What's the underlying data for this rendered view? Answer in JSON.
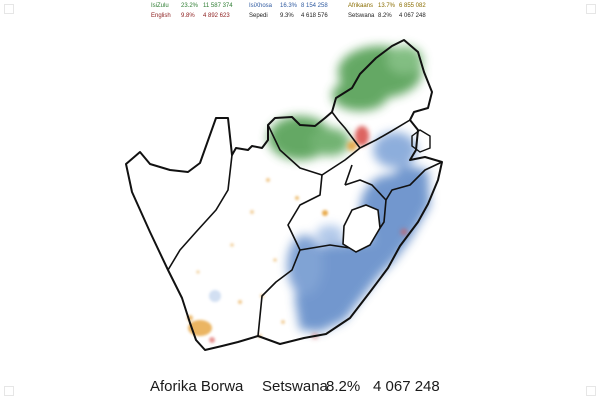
{
  "legend": [
    {
      "language": "IsiZulu",
      "percent": "23.2%",
      "count": "11 587 374",
      "color": "#2e7d32"
    },
    {
      "language": "English",
      "percent": "9.8%",
      "count": "4 892 623",
      "color": "#8b1c1c"
    },
    {
      "language": "IsiXhosa",
      "percent": "16.3%",
      "count": "8 154 258",
      "color": "#2f5aa0"
    },
    {
      "language": "Sepedi",
      "percent": "9.3%",
      "count": "4 618 576",
      "color": "#222222"
    },
    {
      "language": "Afrikaans",
      "percent": "13.7%",
      "count": "6 855 082",
      "color": "#8a6d00"
    },
    {
      "language": "Setswana",
      "percent": "8.2%",
      "count": "4 067 248",
      "color": "#222222"
    }
  ],
  "footer": {
    "country": "Aforika Borwa",
    "language": "Setswana",
    "percent": "8.2%",
    "count": "4 067 248"
  },
  "colors": {
    "green": "#4a9a4a",
    "blue": "#5a86c6",
    "red": "#d9534f",
    "orange": "#e6a23c",
    "border": "#111111"
  }
}
